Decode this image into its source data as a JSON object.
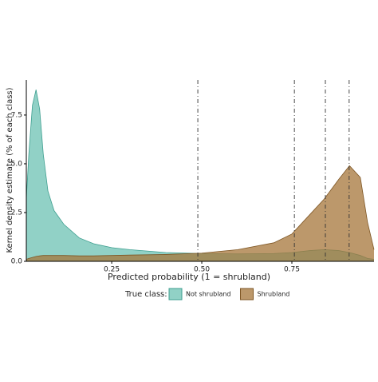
{
  "chart_data": {
    "type": "density",
    "x_label": "Predicted probability (1 = shrubland)",
    "y_label": "Kernel density estimate (% of each class)",
    "x": [
      0.013,
      0.02,
      0.03,
      0.04,
      0.05,
      0.06,
      0.073,
      0.09,
      0.117,
      0.16,
      0.2,
      0.25,
      0.3,
      0.4,
      0.5,
      0.6,
      0.7,
      0.75,
      0.8,
      0.84,
      0.88,
      0.91,
      0.94,
      0.96,
      0.978
    ],
    "series": [
      {
        "name": "Not shrubland",
        "color": "#6cc2b3",
        "stroke": "#3f9f90",
        "values": [
          3.2,
          5.5,
          8.0,
          8.8,
          7.8,
          5.5,
          3.6,
          2.6,
          1.9,
          1.2,
          0.9,
          0.7,
          0.6,
          0.45,
          0.4,
          0.38,
          0.4,
          0.45,
          0.55,
          0.6,
          0.55,
          0.45,
          0.3,
          0.15,
          0.1
        ]
      },
      {
        "name": "Shrubland",
        "color": "#a5763a",
        "stroke": "#7e5624",
        "values": [
          0.1,
          0.15,
          0.2,
          0.25,
          0.28,
          0.3,
          0.3,
          0.3,
          0.3,
          0.28,
          0.28,
          0.3,
          0.32,
          0.35,
          0.42,
          0.6,
          0.95,
          1.4,
          2.4,
          3.2,
          4.2,
          4.9,
          4.3,
          2.0,
          0.6
        ]
      }
    ],
    "vlines": [
      0.489,
      0.757,
      0.843,
      0.909
    ],
    "xlim": [
      0.013,
      0.978
    ],
    "ylim": [
      0,
      9.3
    ],
    "xticks": [
      0.25,
      {
        "value": 0.5,
        "label": "0.50"
      },
      0.75
    ],
    "yticks": [
      {
        "value": 0,
        "label": "0.0"
      },
      2.5,
      {
        "value": 5,
        "label": "5.0"
      },
      7.5
    ],
    "legend_title": "True class:"
  }
}
